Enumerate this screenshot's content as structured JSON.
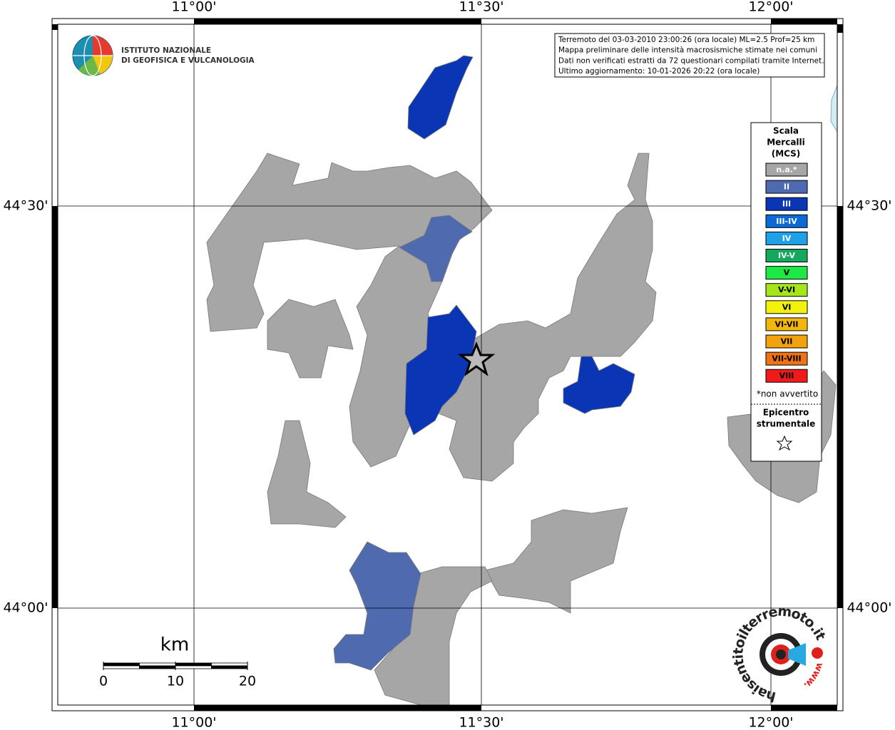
{
  "header": {
    "institute": [
      "ISTITUTO NAZIONALE",
      "DI GEOFISICA E VULCANOLOGIA"
    ]
  },
  "info": [
    "Terremoto del 03-03-2010 23:00:26 (ora locale) ML=2.5 Prof=25 km",
    "Mappa preliminare delle intensità macrosismiche stimate nei comuni",
    "Dati non verificati estratti da 72 questionari compilati tramite Internet.",
    "Ultimo aggiornamento: 10-01-2026 20:22 (ora locale)"
  ],
  "axes": {
    "longitude": [
      "11°00'",
      "11°30'",
      "12°00'"
    ],
    "latitude": [
      "44°30'",
      "44°00'"
    ]
  },
  "legend": {
    "title": [
      "Scala",
      "Mercalli",
      "(MCS)"
    ],
    "items": [
      {
        "label": "n.a.*",
        "color": "#a6a6a6",
        "text_color": "#ffffff"
      },
      {
        "label": "II",
        "color": "#4f6aaf",
        "text_color": "#ffffff"
      },
      {
        "label": "III",
        "color": "#0a35b5",
        "text_color": "#ffffff"
      },
      {
        "label": "III-IV",
        "color": "#0b6ad6",
        "text_color": "#ffffff"
      },
      {
        "label": "IV",
        "color": "#1ea1e6",
        "text_color": "#ffffff"
      },
      {
        "label": "IV-V",
        "color": "#13a85c",
        "text_color": "#ffffff"
      },
      {
        "label": "V",
        "color": "#1ee844",
        "text_color": "#000000"
      },
      {
        "label": "V-VI",
        "color": "#a5e61a",
        "text_color": "#000000"
      },
      {
        "label": "VI",
        "color": "#f2f20d",
        "text_color": "#000000"
      },
      {
        "label": "VI-VII",
        "color": "#f2b60d",
        "text_color": "#000000"
      },
      {
        "label": "VII",
        "color": "#f2a20d",
        "text_color": "#000000"
      },
      {
        "label": "VII-VIII",
        "color": "#f07216",
        "text_color": "#000000"
      },
      {
        "label": "VIII",
        "color": "#f01a1a",
        "text_color": "#000000"
      }
    ],
    "note": "*non avvertito",
    "epicenter": [
      "Epicentro",
      "strumentale"
    ]
  },
  "scale_bar": {
    "unit": "km",
    "ticks": [
      0,
      10,
      20
    ]
  },
  "watermark": {
    "main": "haisentitoilterremoto.it",
    "prefix": "www."
  }
}
